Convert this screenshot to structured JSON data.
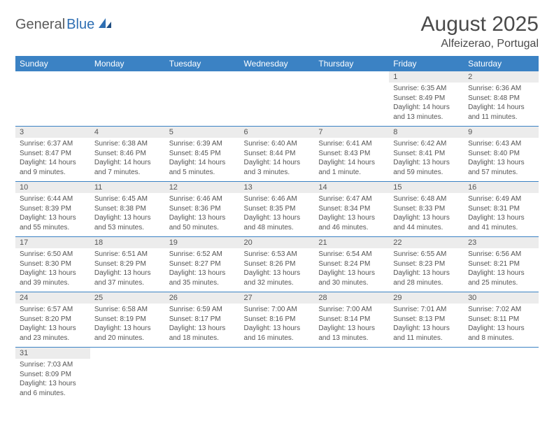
{
  "logo": {
    "general": "General",
    "blue": "Blue"
  },
  "title": "August 2025",
  "location": "Alfeizerao, Portugal",
  "colors": {
    "header_bg": "#3b82c4",
    "header_text": "#ffffff",
    "daynum_bg": "#ececec",
    "text": "#555555",
    "logo_general": "#5a5a5a",
    "logo_blue": "#2f6fb3",
    "border": "#3b82c4"
  },
  "weekdays": [
    "Sunday",
    "Monday",
    "Tuesday",
    "Wednesday",
    "Thursday",
    "Friday",
    "Saturday"
  ],
  "weeks": [
    [
      null,
      null,
      null,
      null,
      null,
      {
        "n": "1",
        "sr": "6:35 AM",
        "ss": "8:49 PM",
        "dl": "14 hours and 13 minutes."
      },
      {
        "n": "2",
        "sr": "6:36 AM",
        "ss": "8:48 PM",
        "dl": "14 hours and 11 minutes."
      }
    ],
    [
      {
        "n": "3",
        "sr": "6:37 AM",
        "ss": "8:47 PM",
        "dl": "14 hours and 9 minutes."
      },
      {
        "n": "4",
        "sr": "6:38 AM",
        "ss": "8:46 PM",
        "dl": "14 hours and 7 minutes."
      },
      {
        "n": "5",
        "sr": "6:39 AM",
        "ss": "8:45 PM",
        "dl": "14 hours and 5 minutes."
      },
      {
        "n": "6",
        "sr": "6:40 AM",
        "ss": "8:44 PM",
        "dl": "14 hours and 3 minutes."
      },
      {
        "n": "7",
        "sr": "6:41 AM",
        "ss": "8:43 PM",
        "dl": "14 hours and 1 minute."
      },
      {
        "n": "8",
        "sr": "6:42 AM",
        "ss": "8:41 PM",
        "dl": "13 hours and 59 minutes."
      },
      {
        "n": "9",
        "sr": "6:43 AM",
        "ss": "8:40 PM",
        "dl": "13 hours and 57 minutes."
      }
    ],
    [
      {
        "n": "10",
        "sr": "6:44 AM",
        "ss": "8:39 PM",
        "dl": "13 hours and 55 minutes."
      },
      {
        "n": "11",
        "sr": "6:45 AM",
        "ss": "8:38 PM",
        "dl": "13 hours and 53 minutes."
      },
      {
        "n": "12",
        "sr": "6:46 AM",
        "ss": "8:36 PM",
        "dl": "13 hours and 50 minutes."
      },
      {
        "n": "13",
        "sr": "6:46 AM",
        "ss": "8:35 PM",
        "dl": "13 hours and 48 minutes."
      },
      {
        "n": "14",
        "sr": "6:47 AM",
        "ss": "8:34 PM",
        "dl": "13 hours and 46 minutes."
      },
      {
        "n": "15",
        "sr": "6:48 AM",
        "ss": "8:33 PM",
        "dl": "13 hours and 44 minutes."
      },
      {
        "n": "16",
        "sr": "6:49 AM",
        "ss": "8:31 PM",
        "dl": "13 hours and 41 minutes."
      }
    ],
    [
      {
        "n": "17",
        "sr": "6:50 AM",
        "ss": "8:30 PM",
        "dl": "13 hours and 39 minutes."
      },
      {
        "n": "18",
        "sr": "6:51 AM",
        "ss": "8:29 PM",
        "dl": "13 hours and 37 minutes."
      },
      {
        "n": "19",
        "sr": "6:52 AM",
        "ss": "8:27 PM",
        "dl": "13 hours and 35 minutes."
      },
      {
        "n": "20",
        "sr": "6:53 AM",
        "ss": "8:26 PM",
        "dl": "13 hours and 32 minutes."
      },
      {
        "n": "21",
        "sr": "6:54 AM",
        "ss": "8:24 PM",
        "dl": "13 hours and 30 minutes."
      },
      {
        "n": "22",
        "sr": "6:55 AM",
        "ss": "8:23 PM",
        "dl": "13 hours and 28 minutes."
      },
      {
        "n": "23",
        "sr": "6:56 AM",
        "ss": "8:21 PM",
        "dl": "13 hours and 25 minutes."
      }
    ],
    [
      {
        "n": "24",
        "sr": "6:57 AM",
        "ss": "8:20 PM",
        "dl": "13 hours and 23 minutes."
      },
      {
        "n": "25",
        "sr": "6:58 AM",
        "ss": "8:19 PM",
        "dl": "13 hours and 20 minutes."
      },
      {
        "n": "26",
        "sr": "6:59 AM",
        "ss": "8:17 PM",
        "dl": "13 hours and 18 minutes."
      },
      {
        "n": "27",
        "sr": "7:00 AM",
        "ss": "8:16 PM",
        "dl": "13 hours and 16 minutes."
      },
      {
        "n": "28",
        "sr": "7:00 AM",
        "ss": "8:14 PM",
        "dl": "13 hours and 13 minutes."
      },
      {
        "n": "29",
        "sr": "7:01 AM",
        "ss": "8:13 PM",
        "dl": "13 hours and 11 minutes."
      },
      {
        "n": "30",
        "sr": "7:02 AM",
        "ss": "8:11 PM",
        "dl": "13 hours and 8 minutes."
      }
    ],
    [
      {
        "n": "31",
        "sr": "7:03 AM",
        "ss": "8:09 PM",
        "dl": "13 hours and 6 minutes."
      },
      null,
      null,
      null,
      null,
      null,
      null
    ]
  ],
  "labels": {
    "sunrise": "Sunrise:",
    "sunset": "Sunset:",
    "daylight": "Daylight:"
  }
}
